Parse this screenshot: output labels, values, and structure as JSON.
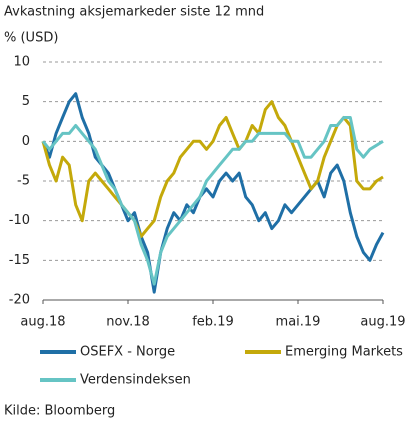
{
  "chart_data": {
    "type": "line",
    "title": "Avkastning aksjemarkeder siste 12 mnd",
    "subtitle": "% (USD)",
    "source": "Kilde: Bloomberg",
    "x": [
      0,
      1,
      2,
      3,
      4,
      5,
      6,
      7,
      8,
      9,
      10,
      11,
      12,
      13,
      14,
      15,
      16,
      17,
      18,
      19,
      20,
      21,
      22,
      23,
      24,
      25,
      26,
      27,
      28,
      29,
      30,
      31,
      32,
      33,
      34,
      35,
      36,
      37,
      38,
      39,
      40,
      41,
      42,
      43,
      44,
      45,
      46,
      47,
      48,
      49,
      50,
      51,
      52
    ],
    "xlim": [
      0,
      52
    ],
    "xticks": [
      {
        "value": 0,
        "label": "aug.18"
      },
      {
        "value": 13,
        "label": "nov.18"
      },
      {
        "value": 26,
        "label": "feb.19"
      },
      {
        "value": 39,
        "label": "mai.19"
      },
      {
        "value": 52,
        "label": "aug.19"
      }
    ],
    "ylim": [
      -20,
      10
    ],
    "yticks": [
      10,
      5,
      0,
      -5,
      -10,
      -15,
      -20
    ],
    "grid": true,
    "series": [
      {
        "name": "OSEFX - Norge",
        "color": "#1f6fa6",
        "values": [
          0,
          -2,
          1,
          3,
          5,
          6,
          3,
          1,
          -2,
          -3,
          -4,
          -6,
          -8,
          -10,
          -9,
          -12,
          -14,
          -19,
          -14,
          -11,
          -9,
          -10,
          -8,
          -9,
          -7,
          -6,
          -7,
          -5,
          -4,
          -5,
          -4,
          -7,
          -8,
          -10,
          -9,
          -11,
          -10,
          -8,
          -9,
          -8,
          -7,
          -6,
          -5,
          -7,
          -4,
          -3,
          -5,
          -9,
          -12,
          -14,
          -15,
          -13,
          -11.5
        ]
      },
      {
        "name": "Emerging Markets",
        "color": "#c4a90a",
        "values": [
          0,
          -3,
          -5,
          -2,
          -3,
          -8,
          -10,
          -5,
          -4,
          -5,
          -6,
          -7,
          -8,
          -9,
          -10,
          -12,
          -11,
          -10,
          -7,
          -5,
          -4,
          -2,
          -1,
          0,
          0,
          -1,
          0,
          2,
          3,
          1,
          -1,
          0,
          2,
          1,
          4,
          5,
          3,
          2,
          0,
          -2,
          -4,
          -6,
          -5,
          -2,
          0,
          2,
          3,
          2,
          -5,
          -6,
          -6,
          -5,
          -4.5
        ]
      },
      {
        "name": "Verdensindeksen",
        "color": "#66c4c4",
        "values": [
          0,
          -1,
          0,
          1,
          1,
          2,
          1,
          0,
          -1,
          -3,
          -5,
          -6,
          -8,
          -9,
          -10,
          -13,
          -15,
          -18,
          -14,
          -12,
          -11,
          -10,
          -9,
          -8,
          -7,
          -5,
          -4,
          -3,
          -2,
          -1,
          -1,
          0,
          0,
          1,
          1,
          1,
          1,
          1,
          0,
          0,
          -2,
          -2,
          -1,
          0,
          2,
          2,
          3,
          3,
          -1,
          -2,
          -1,
          -0.5,
          0
        ]
      }
    ]
  }
}
